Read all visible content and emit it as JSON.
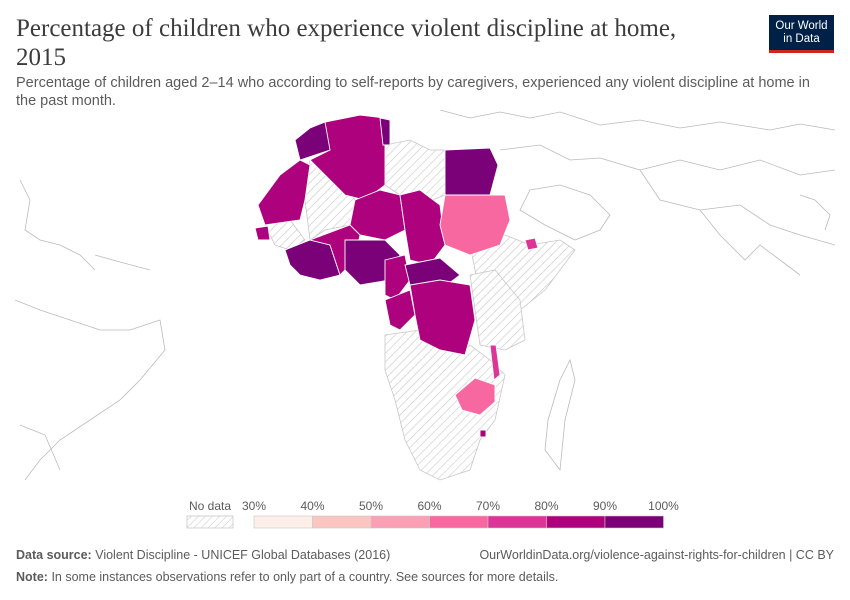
{
  "header": {
    "title": "Percentage of children who experience violent discipline at home, 2015",
    "subtitle": "Percentage of children aged 2–14 who according to self-reports by caregivers, experienced any violent discipline at home in the past month."
  },
  "logo": {
    "line1": "Our World",
    "line2": "in Data"
  },
  "legend": {
    "no_data_label": "No data",
    "bins": [
      {
        "from": "30%",
        "to": "40%",
        "color": "#fdeee8"
      },
      {
        "from": "40%",
        "to": "50%",
        "color": "#fcc6c0"
      },
      {
        "from": "50%",
        "to": "60%",
        "color": "#fb9fb4"
      },
      {
        "from": "60%",
        "to": "70%",
        "color": "#f768a1"
      },
      {
        "from": "70%",
        "to": "80%",
        "color": "#dd3497"
      },
      {
        "from": "80%",
        "to": "90%",
        "color": "#ae017e"
      },
      {
        "from": "90%",
        "to": "100%",
        "color": "#7a0177"
      }
    ],
    "labels": [
      "30%",
      "40%",
      "50%",
      "60%",
      "70%",
      "80%",
      "90%",
      "100%"
    ]
  },
  "footer": {
    "source_label": "Data source:",
    "source_text": "Violent Discipline - UNICEF Global Databases (2016)",
    "url_text": "OurWorldinData.org/violence-against-rights-for-children | CC BY",
    "note_label": "Note:",
    "note_text": "In some instances observations refer to only part of a country. See sources for more details."
  },
  "colors": {
    "no_data_stroke": "#c8c8c8",
    "border": "#ffffff",
    "outline": "#bbbbbb"
  }
}
